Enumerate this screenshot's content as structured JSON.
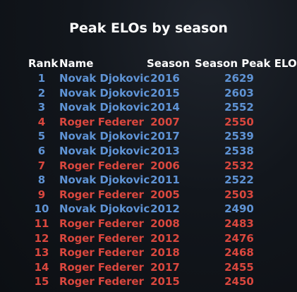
{
  "title": "Peak ELOs by season",
  "headers": {
    "rank": "Rank",
    "name": "Name",
    "season": "Season",
    "elo": "Season Peak ELO"
  },
  "colors": {
    "Novak Djokovic": "#5f93d4",
    "Roger Federer": "#d9473e"
  },
  "rows": [
    {
      "rank": "1",
      "name": "Novak Djokovic",
      "season": "2016",
      "elo": "2629"
    },
    {
      "rank": "2",
      "name": "Novak Djokovic",
      "season": "2015",
      "elo": "2603"
    },
    {
      "rank": "3",
      "name": "Novak Djokovic",
      "season": "2014",
      "elo": "2552"
    },
    {
      "rank": "4",
      "name": "Roger Federer",
      "season": "2007",
      "elo": "2550"
    },
    {
      "rank": "5",
      "name": "Novak Djokovic",
      "season": "2017",
      "elo": "2539"
    },
    {
      "rank": "6",
      "name": "Novak Djokovic",
      "season": "2013",
      "elo": "2538"
    },
    {
      "rank": "7",
      "name": "Roger Federer",
      "season": "2006",
      "elo": "2532"
    },
    {
      "rank": "8",
      "name": "Novak Djokovic",
      "season": "2011",
      "elo": "2522"
    },
    {
      "rank": "9",
      "name": "Roger Federer",
      "season": "2005",
      "elo": "2503"
    },
    {
      "rank": "10",
      "name": "Novak Djokovic",
      "season": "2012",
      "elo": "2490"
    },
    {
      "rank": "11",
      "name": "Roger Federer",
      "season": "2008",
      "elo": "2483"
    },
    {
      "rank": "12",
      "name": "Roger Federer",
      "season": "2012",
      "elo": "2476"
    },
    {
      "rank": "13",
      "name": "Roger Federer",
      "season": "2018",
      "elo": "2468"
    },
    {
      "rank": "14",
      "name": "Roger Federer",
      "season": "2017",
      "elo": "2455"
    },
    {
      "rank": "15",
      "name": "Roger Federer",
      "season": "2015",
      "elo": "2450"
    }
  ]
}
